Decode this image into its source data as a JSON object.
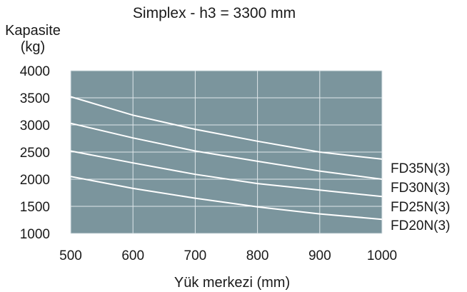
{
  "chart_data": {
    "type": "line",
    "title": "Simplex - h3 = 3300 mm",
    "ylabel": "Kapasite",
    "ylabel_unit": "(kg)",
    "xlabel": "Yük merkezi (mm)",
    "x_ticks": [
      "500",
      "600",
      "700",
      "800",
      "900",
      "1000"
    ],
    "y_ticks": [
      "4000",
      "3500",
      "3000",
      "2500",
      "2000",
      "1500",
      "1000"
    ],
    "xlim": [
      500,
      1000
    ],
    "ylim": [
      1000,
      4000
    ],
    "grid": true,
    "colors": {
      "plot_bg": "#7b959d",
      "grid": "#dfe7ea",
      "line": "#ffffff"
    },
    "series": [
      {
        "name": "FD35N(3)",
        "x": [
          500,
          600,
          700,
          800,
          900,
          1000
        ],
        "y": [
          3520,
          3180,
          2920,
          2700,
          2500,
          2370
        ]
      },
      {
        "name": "FD30N(3)",
        "x": [
          500,
          600,
          700,
          800,
          900,
          1000
        ],
        "y": [
          3030,
          2760,
          2520,
          2330,
          2150,
          2000
        ]
      },
      {
        "name": "FD25N(3)",
        "x": [
          500,
          600,
          700,
          800,
          900,
          1000
        ],
        "y": [
          2520,
          2300,
          2090,
          1920,
          1800,
          1680
        ]
      },
      {
        "name": "FD20N(3)",
        "x": [
          500,
          600,
          700,
          800,
          900,
          1000
        ],
        "y": [
          2050,
          1830,
          1650,
          1490,
          1360,
          1260
        ]
      }
    ]
  }
}
